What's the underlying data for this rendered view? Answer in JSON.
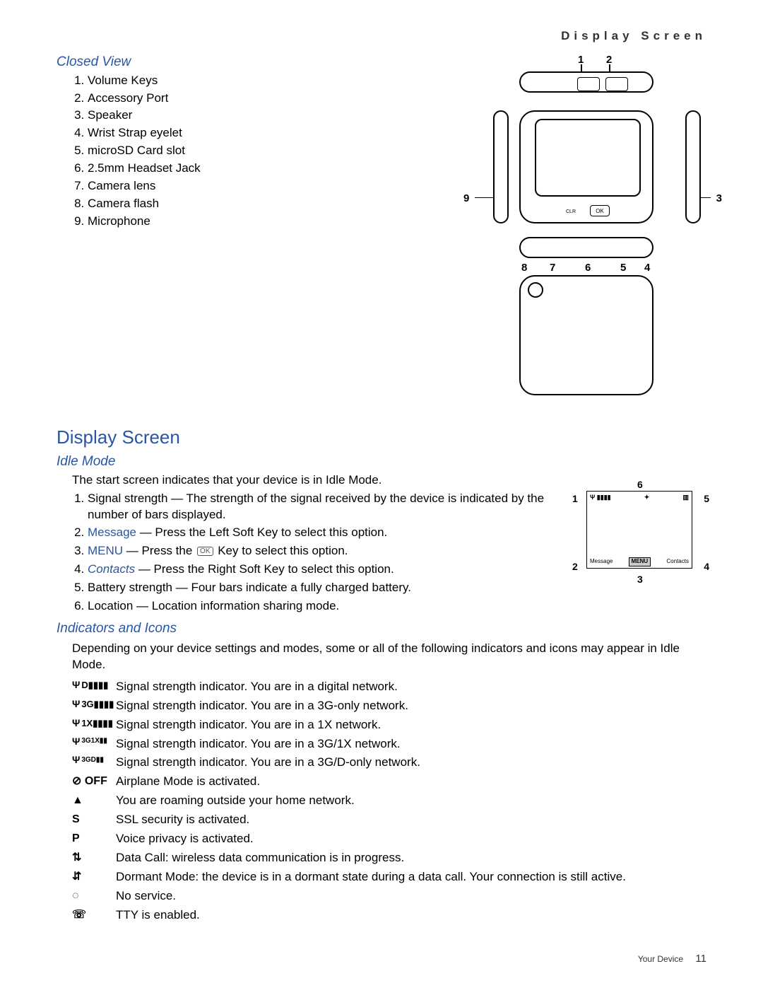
{
  "header": {
    "section_label": "Display Screen"
  },
  "closed_view": {
    "heading": "Closed View",
    "items": [
      "Volume Keys",
      "Accessory Port",
      "Speaker",
      "Wrist Strap eyelet",
      "microSD Card slot",
      "2.5mm Headset Jack",
      "Camera lens",
      "Camera flash",
      "Microphone"
    ],
    "callouts": [
      "1",
      "2",
      "3",
      "4",
      "5",
      "6",
      "7",
      "8",
      "9"
    ],
    "ok_label": "OK",
    "clr_label": "CLR"
  },
  "display_screen": {
    "heading": "Display Screen"
  },
  "idle_mode": {
    "heading": "Idle Mode",
    "intro": "The start screen indicates that your device is in Idle Mode.",
    "items": [
      {
        "pre": "Signal strength — The strength of the signal received by the device is indicated by the number of bars displayed."
      },
      {
        "kw": "Message",
        "post": " — Press the Left Soft Key to select this option."
      },
      {
        "kw": "MENU",
        "post_pre": " — Press the ",
        "ok": "OK",
        "post_post": " Key to select this option."
      },
      {
        "kw_italic": "Contacts",
        "post": " — Press the Right Soft Key to select this option."
      },
      {
        "pre": "Battery strength — Four bars indicate a fully charged battery."
      },
      {
        "pre": "Location — Location information sharing mode."
      }
    ],
    "screen": {
      "sig_label": "▮▮▮▮",
      "batt_label": "▥",
      "message": "Message",
      "menu": "MENU",
      "contacts": "Contacts",
      "callouts": [
        "1",
        "2",
        "3",
        "4",
        "5",
        "6"
      ]
    }
  },
  "indicators": {
    "heading": "Indicators and Icons",
    "intro": "Depending on your device settings and modes, some or all of the following indicators and icons may appear in Idle Mode.",
    "rows": [
      {
        "icon_text": "D▮▮▮▮",
        "antenna": true,
        "desc": "Signal strength indicator. You are in a digital network."
      },
      {
        "icon_text": "3G▮▮▮▮",
        "antenna": true,
        "desc": "Signal strength indicator. You are in a 3G-only network."
      },
      {
        "icon_text": "1X▮▮▮▮",
        "antenna": true,
        "desc": "Signal strength indicator. You are in a 1X network."
      },
      {
        "icon_text": "3G1X▮▮",
        "antenna": true,
        "small": true,
        "desc": "Signal strength indicator. You are in a 3G/1X network."
      },
      {
        "icon_text": "3GD▮▮",
        "antenna": true,
        "small": true,
        "desc": "Signal strength indicator. You are in a 3G/D-only network."
      },
      {
        "glyph": "⊘ OFF",
        "desc": "Airplane Mode is activated."
      },
      {
        "glyph": "▲",
        "desc": "You are roaming outside your home network."
      },
      {
        "glyph": "S",
        "bold": true,
        "desc": "SSL security is activated."
      },
      {
        "glyph": "P",
        "bold": true,
        "desc": "Voice privacy is activated."
      },
      {
        "glyph": "⇅",
        "desc": "Data Call: wireless data communication is in progress."
      },
      {
        "glyph": "⇵",
        "desc": "Dormant Mode: the device is in a dormant state during a data call. Your connection is still active."
      },
      {
        "glyph": "◌",
        "desc": "No service."
      },
      {
        "glyph": "☏",
        "desc": "TTY is enabled."
      }
    ]
  },
  "footer": {
    "label": "Your Device",
    "page": "11"
  },
  "colors": {
    "accent": "#2856a6"
  }
}
